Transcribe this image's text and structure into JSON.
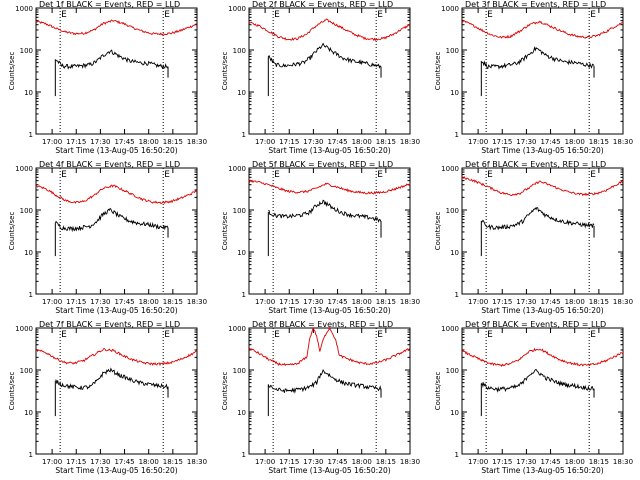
{
  "figure": {
    "background": "#ffffff",
    "colors": {
      "events": "#000000",
      "lld": "#e00000",
      "axes": "#000000"
    },
    "panel_title_suffix": "BLACK = Events, RED = LLD",
    "marker_letter": "E",
    "ylabel": "Counts/sec",
    "xlabel": "Start Time (13-Aug-05 16:50:20)"
  },
  "chart_data": [
    {
      "type": "line",
      "title": "Det 1f BLACK = Events, RED = LLD",
      "xlabel": "Start Time (13-Aug-05 16:50:20)",
      "ylabel": "Counts/sec",
      "yscale": "log",
      "ylim": [
        1,
        1000
      ],
      "xlim": [
        "16:50",
        "18:30"
      ],
      "x_ticks": [
        "17:00",
        "17:15",
        "17:30",
        "17:45",
        "18:00",
        "18:15",
        "18:30"
      ],
      "y_ticks": [
        "1",
        "10",
        "100",
        "1000"
      ],
      "vlines": [
        "17:05",
        "18:09"
      ],
      "series": [
        {
          "name": "LLD",
          "color": "#e00000",
          "x": [
            "16:50",
            "16:56",
            "17:02",
            "17:08",
            "17:14",
            "17:20",
            "17:26",
            "17:32",
            "17:38",
            "17:44",
            "17:50",
            "17:56",
            "18:02",
            "18:08",
            "18:14",
            "18:20",
            "18:26",
            "18:30"
          ],
          "values": [
            480,
            420,
            330,
            270,
            245,
            250,
            300,
            430,
            500,
            430,
            340,
            280,
            245,
            240,
            250,
            290,
            360,
            420
          ]
        },
        {
          "name": "Events",
          "color": "#000000",
          "x": [
            "17:02",
            "17:06",
            "17:12",
            "17:18",
            "17:24",
            "17:28",
            "17:32",
            "17:36",
            "17:42",
            "17:48",
            "17:54",
            "18:00",
            "18:06",
            "18:12"
          ],
          "values": [
            60,
            42,
            40,
            42,
            45,
            55,
            75,
            95,
            70,
            55,
            50,
            48,
            42,
            40
          ]
        }
      ]
    },
    {
      "type": "line",
      "title": "Det 2f BLACK = Events, RED = LLD",
      "xlabel": "Start Time (13-Aug-05 16:50:20)",
      "ylabel": "Counts/sec",
      "yscale": "log",
      "ylim": [
        1,
        1000
      ],
      "xlim": [
        "16:50",
        "18:30"
      ],
      "x_ticks": [
        "17:00",
        "17:15",
        "17:30",
        "17:45",
        "18:00",
        "18:15",
        "18:30"
      ],
      "y_ticks": [
        "1",
        "10",
        "100",
        "1000"
      ],
      "vlines": [
        "17:05",
        "18:09"
      ],
      "series": [
        {
          "name": "LLD",
          "color": "#e00000",
          "x": [
            "16:50",
            "16:56",
            "17:02",
            "17:08",
            "17:14",
            "17:20",
            "17:26",
            "17:32",
            "17:38",
            "17:44",
            "17:50",
            "17:56",
            "18:02",
            "18:08",
            "18:14",
            "18:20",
            "18:26",
            "18:30"
          ],
          "values": [
            450,
            380,
            280,
            210,
            180,
            185,
            240,
            380,
            520,
            400,
            300,
            230,
            190,
            180,
            190,
            240,
            330,
            400
          ]
        },
        {
          "name": "Events",
          "color": "#000000",
          "x": [
            "17:02",
            "17:06",
            "17:12",
            "17:18",
            "17:24",
            "17:28",
            "17:32",
            "17:36",
            "17:42",
            "17:48",
            "17:54",
            "18:00",
            "18:06",
            "18:12"
          ],
          "values": [
            70,
            45,
            42,
            45,
            50,
            65,
            95,
            130,
            90,
            65,
            55,
            50,
            45,
            40
          ]
        }
      ]
    },
    {
      "type": "line",
      "title": "Det 3f BLACK = Events, RED = LLD",
      "xlabel": "Start Time (13-Aug-05 16:50:20)",
      "ylabel": "Counts/sec",
      "yscale": "log",
      "ylim": [
        1,
        1000
      ],
      "xlim": [
        "16:50",
        "18:30"
      ],
      "x_ticks": [
        "17:00",
        "17:15",
        "17:30",
        "17:45",
        "18:00",
        "18:15",
        "18:30"
      ],
      "y_ticks": [
        "1",
        "10",
        "100",
        "1000"
      ],
      "vlines": [
        "17:05",
        "18:09"
      ],
      "series": [
        {
          "name": "LLD",
          "color": "#e00000",
          "x": [
            "16:50",
            "16:56",
            "17:02",
            "17:08",
            "17:14",
            "17:20",
            "17:26",
            "17:32",
            "17:38",
            "17:44",
            "17:50",
            "17:56",
            "18:02",
            "18:08",
            "18:14",
            "18:20",
            "18:26",
            "18:30"
          ],
          "values": [
            500,
            400,
            300,
            230,
            200,
            210,
            280,
            400,
            480,
            380,
            300,
            240,
            210,
            200,
            220,
            280,
            380,
            450
          ]
        },
        {
          "name": "Events",
          "color": "#000000",
          "x": [
            "17:02",
            "17:06",
            "17:12",
            "17:18",
            "17:24",
            "17:28",
            "17:32",
            "17:36",
            "17:42",
            "17:48",
            "17:54",
            "18:00",
            "18:06",
            "18:12"
          ],
          "values": [
            55,
            40,
            40,
            43,
            48,
            60,
            80,
            110,
            75,
            60,
            52,
            50,
            45,
            42
          ]
        }
      ]
    },
    {
      "type": "line",
      "title": "Det 4f BLACK = Events, RED = LLD",
      "xlabel": "Start Time (13-Aug-05 16:50:20)",
      "ylabel": "Counts/sec",
      "yscale": "log",
      "ylim": [
        1,
        1000
      ],
      "xlim": [
        "16:50",
        "18:30"
      ],
      "x_ticks": [
        "17:00",
        "17:15",
        "17:30",
        "17:45",
        "18:00",
        "18:15",
        "18:30"
      ],
      "y_ticks": [
        "1",
        "10",
        "100",
        "1000"
      ],
      "vlines": [
        "17:05",
        "18:09"
      ],
      "series": [
        {
          "name": "LLD",
          "color": "#e00000",
          "x": [
            "16:50",
            "16:56",
            "17:02",
            "17:08",
            "17:14",
            "17:20",
            "17:26",
            "17:32",
            "17:38",
            "17:44",
            "17:50",
            "17:56",
            "18:02",
            "18:08",
            "18:14",
            "18:20",
            "18:26",
            "18:30"
          ],
          "values": [
            380,
            320,
            230,
            170,
            150,
            160,
            220,
            330,
            380,
            300,
            230,
            180,
            155,
            150,
            160,
            190,
            240,
            290
          ]
        },
        {
          "name": "Events",
          "color": "#000000",
          "x": [
            "17:02",
            "17:06",
            "17:12",
            "17:18",
            "17:24",
            "17:28",
            "17:32",
            "17:36",
            "17:42",
            "17:48",
            "17:54",
            "18:00",
            "18:06",
            "18:12"
          ],
          "values": [
            50,
            38,
            36,
            38,
            42,
            55,
            80,
            100,
            70,
            55,
            48,
            45,
            40,
            38
          ]
        }
      ]
    },
    {
      "type": "line",
      "title": "Det 5f BLACK = Events, RED = LLD",
      "xlabel": "Start Time (13-Aug-05 16:50:20)",
      "ylabel": "Counts/sec",
      "yscale": "log",
      "ylim": [
        1,
        1000
      ],
      "xlim": [
        "16:50",
        "18:30"
      ],
      "x_ticks": [
        "17:00",
        "17:15",
        "17:30",
        "17:45",
        "18:00",
        "18:15",
        "18:30"
      ],
      "y_ticks": [
        "1",
        "10",
        "100",
        "1000"
      ],
      "vlines": [
        "17:05",
        "18:09"
      ],
      "series": [
        {
          "name": "LLD",
          "color": "#e00000",
          "x": [
            "16:50",
            "16:56",
            "17:02",
            "17:08",
            "17:14",
            "17:20",
            "17:26",
            "17:32",
            "17:38",
            "17:44",
            "17:50",
            "17:56",
            "18:02",
            "18:08",
            "18:14",
            "18:20",
            "18:26",
            "18:30"
          ],
          "values": [
            500,
            460,
            400,
            330,
            280,
            265,
            275,
            330,
            420,
            360,
            300,
            270,
            255,
            255,
            270,
            310,
            370,
            420
          ]
        },
        {
          "name": "Events",
          "color": "#000000",
          "x": [
            "17:02",
            "17:06",
            "17:12",
            "17:18",
            "17:24",
            "17:28",
            "17:32",
            "17:36",
            "17:42",
            "17:48",
            "17:54",
            "18:00",
            "18:06",
            "18:12"
          ],
          "values": [
            90,
            75,
            70,
            72,
            78,
            90,
            130,
            160,
            110,
            85,
            75,
            70,
            65,
            55
          ]
        }
      ]
    },
    {
      "type": "line",
      "title": "Det 6f BLACK = Events, RED = LLD",
      "xlabel": "Start Time (13-Aug-05 16:50:20)",
      "ylabel": "Counts/sec",
      "yscale": "log",
      "ylim": [
        1,
        1000
      ],
      "xlim": [
        "16:50",
        "18:30"
      ],
      "x_ticks": [
        "17:00",
        "17:15",
        "17:30",
        "17:45",
        "18:00",
        "18:15",
        "18:30"
      ],
      "y_ticks": [
        "1",
        "10",
        "100",
        "1000"
      ],
      "vlines": [
        "17:05",
        "18:09"
      ],
      "series": [
        {
          "name": "LLD",
          "color": "#e00000",
          "x": [
            "16:50",
            "16:56",
            "17:02",
            "17:08",
            "17:14",
            "17:20",
            "17:26",
            "17:32",
            "17:38",
            "17:44",
            "17:50",
            "17:56",
            "18:02",
            "18:08",
            "18:14",
            "18:20",
            "18:26",
            "18:30"
          ],
          "values": [
            600,
            520,
            420,
            330,
            260,
            230,
            250,
            340,
            480,
            400,
            320,
            270,
            240,
            235,
            250,
            300,
            400,
            480
          ]
        },
        {
          "name": "Events",
          "color": "#000000",
          "x": [
            "17:02",
            "17:06",
            "17:12",
            "17:18",
            "17:24",
            "17:28",
            "17:32",
            "17:36",
            "17:42",
            "17:48",
            "17:54",
            "18:00",
            "18:06",
            "18:12"
          ],
          "values": [
            55,
            40,
            38,
            40,
            45,
            55,
            80,
            110,
            75,
            60,
            52,
            48,
            44,
            42
          ]
        }
      ]
    },
    {
      "type": "line",
      "title": "Det 7f BLACK = Events, RED = LLD",
      "xlabel": "Start Time (13-Aug-05 16:50:20)",
      "ylabel": "Counts/sec",
      "yscale": "log",
      "ylim": [
        1,
        1000
      ],
      "xlim": [
        "16:50",
        "18:30"
      ],
      "x_ticks": [
        "17:00",
        "17:15",
        "17:30",
        "17:45",
        "18:00",
        "18:15",
        "18:30"
      ],
      "y_ticks": [
        "1",
        "10",
        "100",
        "1000"
      ],
      "vlines": [
        "17:05",
        "18:09"
      ],
      "series": [
        {
          "name": "LLD",
          "color": "#e00000",
          "x": [
            "16:50",
            "16:56",
            "17:02",
            "17:08",
            "17:14",
            "17:20",
            "17:26",
            "17:32",
            "17:38",
            "17:44",
            "17:50",
            "17:56",
            "18:02",
            "18:08",
            "18:14",
            "18:20",
            "18:26",
            "18:30"
          ],
          "values": [
            300,
            260,
            190,
            150,
            145,
            170,
            230,
            310,
            290,
            220,
            175,
            150,
            140,
            140,
            150,
            180,
            230,
            280
          ]
        },
        {
          "name": "Events",
          "color": "#000000",
          "x": [
            "17:02",
            "17:06",
            "17:12",
            "17:18",
            "17:24",
            "17:28",
            "17:32",
            "17:36",
            "17:42",
            "17:48",
            "17:54",
            "18:00",
            "18:06",
            "18:12"
          ],
          "values": [
            55,
            45,
            40,
            38,
            40,
            55,
            85,
            100,
            75,
            60,
            50,
            46,
            42,
            40
          ]
        }
      ]
    },
    {
      "type": "line",
      "title": "Det 8f BLACK = Events, RED = LLD",
      "xlabel": "Start Time (13-Aug-05 16:50:20)",
      "ylabel": "Counts/sec",
      "yscale": "log",
      "ylim": [
        1,
        1000
      ],
      "xlim": [
        "16:50",
        "18:30"
      ],
      "x_ticks": [
        "17:00",
        "17:15",
        "17:30",
        "17:45",
        "18:00",
        "18:15",
        "18:30"
      ],
      "y_ticks": [
        "1",
        "10",
        "100",
        "1000"
      ],
      "vlines": [
        "17:05",
        "18:09"
      ],
      "series": [
        {
          "name": "LLD",
          "color": "#e00000",
          "x": [
            "16:50",
            "16:56",
            "17:02",
            "17:08",
            "17:14",
            "17:20",
            "17:26",
            "17:30",
            "17:34",
            "17:40",
            "17:46",
            "17:52",
            "17:58",
            "18:04",
            "18:10",
            "18:16",
            "18:22",
            "18:30"
          ],
          "values": [
            330,
            250,
            180,
            140,
            130,
            140,
            200,
            1000,
            260,
            1000,
            220,
            180,
            150,
            140,
            150,
            180,
            230,
            320
          ]
        },
        {
          "name": "Events",
          "color": "#000000",
          "x": [
            "17:02",
            "17:06",
            "17:12",
            "17:18",
            "17:24",
            "17:28",
            "17:32",
            "17:36",
            "17:42",
            "17:48",
            "17:54",
            "18:00",
            "18:06",
            "18:12"
          ],
          "values": [
            45,
            35,
            32,
            33,
            36,
            40,
            50,
            95,
            65,
            50,
            45,
            42,
            38,
            36
          ]
        }
      ]
    },
    {
      "type": "line",
      "title": "Det 9f BLACK = Events, RED = LLD",
      "xlabel": "Start Time (13-Aug-05 16:50:20)",
      "ylabel": "Counts/sec",
      "yscale": "log",
      "ylim": [
        1,
        1000
      ],
      "xlim": [
        "16:50",
        "18:30"
      ],
      "x_ticks": [
        "17:00",
        "17:15",
        "17:30",
        "17:45",
        "18:00",
        "18:15",
        "18:30"
      ],
      "y_ticks": [
        "1",
        "10",
        "100",
        "1000"
      ],
      "vlines": [
        "17:05",
        "18:09"
      ],
      "series": [
        {
          "name": "LLD",
          "color": "#e00000",
          "x": [
            "16:50",
            "16:56",
            "17:02",
            "17:08",
            "17:14",
            "17:20",
            "17:26",
            "17:32",
            "17:38",
            "17:44",
            "17:50",
            "17:56",
            "18:02",
            "18:08",
            "18:14",
            "18:20",
            "18:26",
            "18:30"
          ],
          "values": [
            280,
            220,
            170,
            140,
            130,
            140,
            180,
            280,
            320,
            240,
            180,
            150,
            135,
            130,
            140,
            170,
            220,
            270
          ]
        },
        {
          "name": "Events",
          "color": "#000000",
          "x": [
            "17:02",
            "17:06",
            "17:12",
            "17:18",
            "17:24",
            "17:28",
            "17:32",
            "17:36",
            "17:42",
            "17:48",
            "17:54",
            "18:00",
            "18:06",
            "18:12"
          ],
          "values": [
            48,
            38,
            35,
            36,
            40,
            50,
            80,
            95,
            65,
            52,
            45,
            42,
            38,
            36
          ]
        }
      ]
    }
  ]
}
